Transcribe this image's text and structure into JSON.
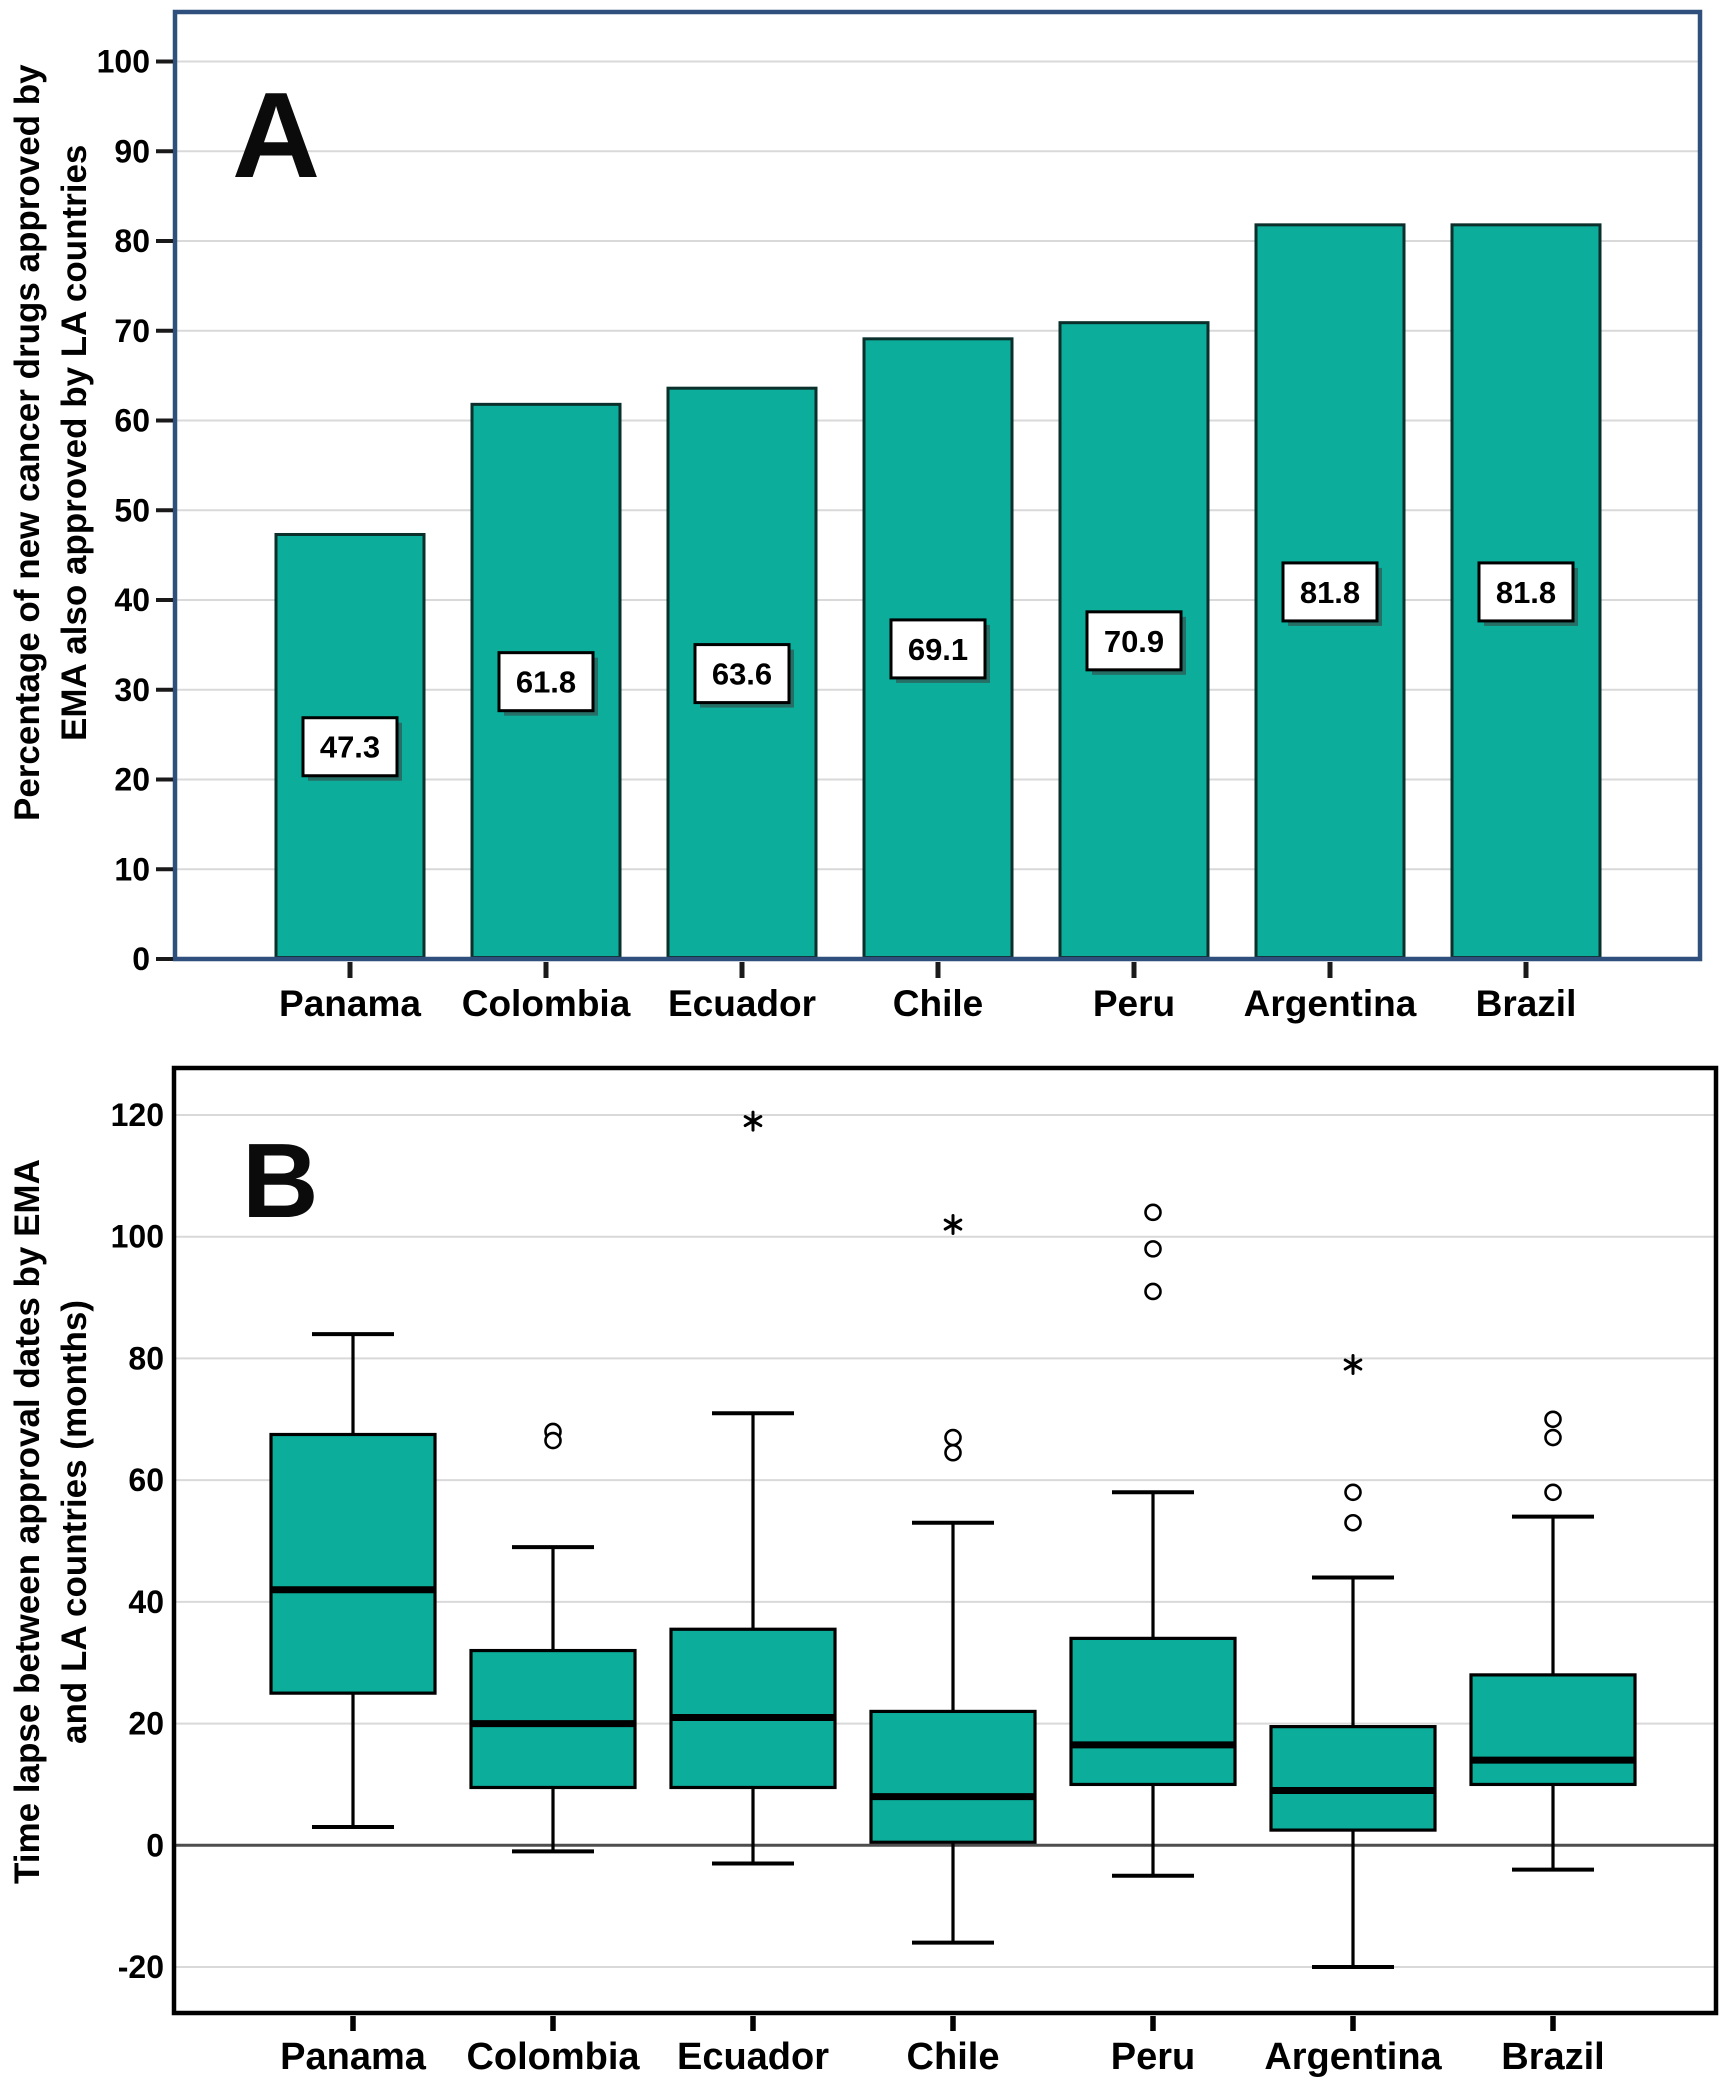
{
  "figure": {
    "panel_a": {
      "letter": "A",
      "y_axis_label_line1": "Percentage of new cancer drugs approved by",
      "y_axis_label_line2": "EMA also approved by LA countries"
    },
    "panel_b": {
      "letter": "B",
      "y_axis_label_line1": "Time lapse between approval dates by EMA",
      "y_axis_label_line2": "and LA countries (months)"
    }
  },
  "colors": {
    "teal_fill": "#0CAD9B",
    "bar_stroke": "#0B2F2A",
    "panel_a_frame": "#2F4F7D",
    "panel_b_frame": "#000000",
    "gridline": "#D9D9D9",
    "zero_line": "#4D4D4D",
    "text": "#000000",
    "label_box_bg": "#FFFFFF",
    "label_box_border": "#000000",
    "label_box_shadow": "#3C3C3C"
  },
  "chart_data": [
    {
      "type": "bar",
      "panel": "A",
      "title": "",
      "xlabel": "",
      "ylabel": "Percentage of new cancer drugs approved by EMA also approved by LA countries",
      "categories": [
        "Panama",
        "Colombia",
        "Ecuador",
        "Chile",
        "Peru",
        "Argentina",
        "Brazil"
      ],
      "values": [
        47.3,
        61.8,
        63.6,
        69.1,
        70.9,
        81.8,
        81.8
      ],
      "data_labels": [
        "47.3",
        "61.8",
        "63.6",
        "69.1",
        "70.9",
        "81.8",
        "81.8"
      ],
      "yticks": [
        0,
        10,
        20,
        30,
        40,
        50,
        60,
        70,
        80,
        90,
        100
      ],
      "ylim": [
        0,
        105.5
      ],
      "grid": true,
      "legend": false
    },
    {
      "type": "boxplot",
      "panel": "B",
      "title": "",
      "xlabel": "",
      "ylabel": "Time lapse between approval dates by EMA and LA countries (months)",
      "categories": [
        "Panama",
        "Colombia",
        "Ecuador",
        "Chile",
        "Peru",
        "Argentina",
        "Brazil"
      ],
      "yticks": [
        -20,
        0,
        20,
        40,
        60,
        80,
        100,
        120
      ],
      "ylim": [
        -27.5,
        127.5
      ],
      "grid": true,
      "outlier_marker": "circle",
      "extreme_marker": "asterisk",
      "series": [
        {
          "name": "Panama",
          "whisker_low": 3,
          "q1": 25,
          "median": 42,
          "q3": 67.5,
          "whisker_high": 84,
          "outliers": [],
          "extremes": []
        },
        {
          "name": "Colombia",
          "whisker_low": -1,
          "q1": 9.5,
          "median": 20,
          "q3": 32,
          "whisker_high": 49,
          "outliers": [
            68,
            66.5
          ],
          "extremes": []
        },
        {
          "name": "Ecuador",
          "whisker_low": -3,
          "q1": 9.5,
          "median": 21,
          "q3": 35.5,
          "whisker_high": 71,
          "outliers": [],
          "extremes": [
            119
          ]
        },
        {
          "name": "Chile",
          "whisker_low": -16,
          "q1": 0.5,
          "median": 8,
          "q3": 22,
          "whisker_high": 53,
          "outliers": [
            67,
            64.5
          ],
          "extremes": [
            102
          ]
        },
        {
          "name": "Peru",
          "whisker_low": -5,
          "q1": 10,
          "median": 16.5,
          "q3": 34,
          "whisker_high": 58,
          "outliers": [
            104,
            98,
            91
          ],
          "extremes": []
        },
        {
          "name": "Argentina",
          "whisker_low": -20,
          "q1": 2.5,
          "median": 9,
          "q3": 19.5,
          "whisker_high": 44,
          "outliers": [
            58,
            53
          ],
          "extremes": [
            79
          ]
        },
        {
          "name": "Brazil",
          "whisker_low": -4,
          "q1": 10,
          "median": 14,
          "q3": 28,
          "whisker_high": 54,
          "outliers": [
            70,
            67,
            58
          ],
          "extremes": []
        }
      ]
    }
  ]
}
